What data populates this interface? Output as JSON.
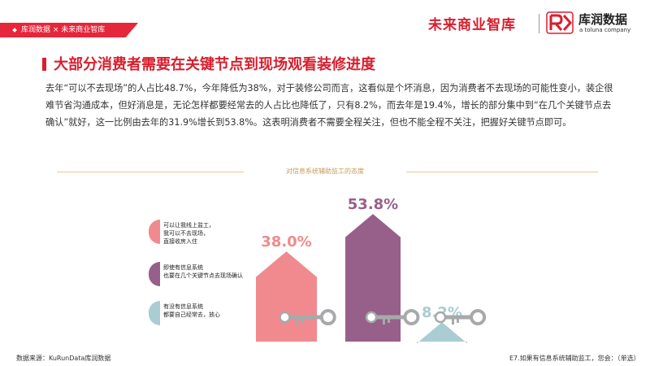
{
  "header": {
    "tag": "库润数据 × 未来商业智库",
    "brand_future": "未来商业智库",
    "brand_kurun": "库润数据",
    "brand_toluna": "a toluna company",
    "colors": {
      "red": "#d91e2d"
    }
  },
  "page": {
    "title": "大部分消费者需要在关键节点到现场观看装修进度",
    "paragraph": "去年“可以不去现场”的人占比48.7%，今年降低为38%，对于装修公司而言，这看似是个坏消息，因为消费者不去现场的可能性变小，装企很难节省沟通成本，但好消息是，无论怎样都要经常去的人占比也降低了，只有8.2%，而去年是19.4%，增长的部分集中到“在几个关键节点去确认”就好，这一比例由去年的31.9%增长到53.8%。这表明消费者不需要全程关注，但也不能全程不关注，把握好关键节点即可。"
  },
  "chart_data": {
    "type": "bar",
    "title": "对信息系统辅助监工的态度",
    "categories": [
      "可以让我线上监工，我可以不去现场，直接收房入住",
      "即使有信息系统也要在几个关键节点去现场确认",
      "有没有信息系统都要自己经常去，放心"
    ],
    "legend": [
      {
        "lines": [
          "可以让我线上监工，",
          "我可以不去现场，",
          "直接收房入住"
        ],
        "color": "#f08a8f",
        "icon": "key-icon"
      },
      {
        "lines": [
          "即使有信息系统",
          "也要在几个关键节点去现场确认"
        ],
        "color": "#96608a",
        "icon": "key-icon"
      },
      {
        "lines": [
          "有没有信息系统",
          "都要自己经常去，放心"
        ],
        "color": "#a9cdd2",
        "icon": "key-icon"
      }
    ],
    "values": [
      38.0,
      53.8,
      8.2
    ],
    "labels": [
      "38.0%",
      "53.8%",
      "8.2%"
    ],
    "colors": [
      "#f08a8f",
      "#96608a",
      "#a9cdd2"
    ],
    "key_color": "#a7a9ab",
    "ylim": [
      0,
      60
    ],
    "unit": "%"
  },
  "footer": {
    "source": "数据来源：KuRunData库润数据",
    "question": "E7.如果有信息系统辅助监工，您会：（单选）"
  }
}
